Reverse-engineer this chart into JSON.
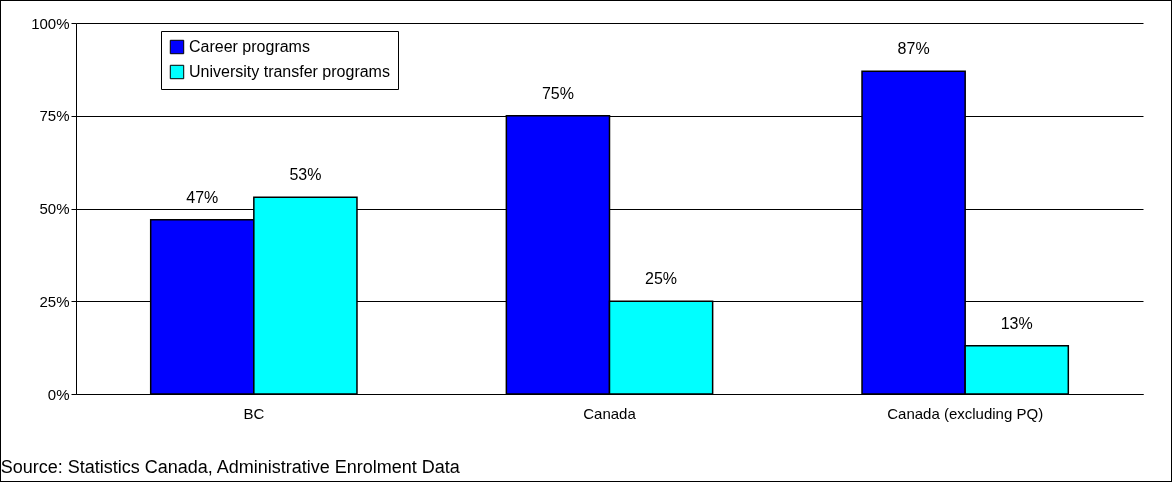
{
  "chart_data": {
    "type": "bar",
    "categories": [
      "BC",
      "Canada",
      "Canada (excluding PQ)"
    ],
    "series": [
      {
        "name": "Career programs",
        "color": "#0000ff",
        "values": [
          47,
          75,
          87
        ],
        "value_labels": [
          "47%",
          "75%",
          "87%"
        ]
      },
      {
        "name": "University transfer programs",
        "color": "#00ffff",
        "values": [
          53,
          25,
          13
        ],
        "value_labels": [
          "53%",
          "25%",
          "13%"
        ]
      }
    ],
    "ylim": [
      0,
      100
    ],
    "yticks": [
      {
        "value": 0,
        "label": "0%"
      },
      {
        "value": 25,
        "label": "25%"
      },
      {
        "value": 50,
        "label": "50%"
      },
      {
        "value": 75,
        "label": "75%"
      },
      {
        "value": 100,
        "label": "100%"
      }
    ],
    "grid": "y",
    "legend": "top left",
    "annotations": [
      "Source:  Statistics Canada, Administrative Enrolment Data"
    ]
  }
}
